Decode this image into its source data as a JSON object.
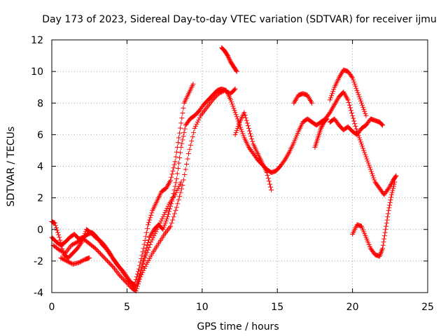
{
  "chart_data": {
    "type": "scatter",
    "title": "Day 173 of 2023, Sidereal Day-to-day VTEC variation (SDTVAR) for receiver ijmu",
    "xlabel": "GPS time / hours",
    "ylabel": "SDTVAR / TECUs",
    "xlim": [
      0,
      25
    ],
    "ylim": [
      -4,
      12
    ],
    "xticks": [
      "0",
      "5",
      "10",
      "15",
      "20",
      "25"
    ],
    "yticks": [
      "-4",
      "-2",
      "0",
      "2",
      "4",
      "6",
      "8",
      "10",
      "12"
    ],
    "grid": true,
    "marker": "+",
    "color": "#ff0000",
    "series": [
      {
        "x": [
          0.0,
          0.3,
          0.6,
          0.9,
          1.2,
          1.5,
          1.8,
          2.1,
          2.4,
          2.7,
          3.0,
          3.3,
          3.6,
          3.9,
          4.2,
          4.5,
          4.8,
          5.1,
          5.4,
          5.6,
          5.9,
          6.2,
          6.5,
          6.8,
          7.1,
          7.4,
          7.7,
          8.0,
          8.3,
          8.6,
          8.9,
          9.2,
          9.5,
          9.8,
          10.1,
          10.4,
          10.7,
          11.0,
          11.3,
          11.6,
          11.9,
          12.2,
          12.5,
          12.8,
          13.1,
          13.4,
          13.7,
          14.0,
          14.3,
          14.6,
          14.9,
          15.2,
          15.5,
          15.8,
          16.1,
          16.4,
          16.7,
          17.0,
          17.3,
          17.6,
          17.9,
          18.2,
          18.5,
          18.8,
          19.1,
          19.4,
          19.7,
          20.0,
          20.3,
          20.6,
          20.9,
          21.2,
          21.5,
          21.8,
          22.1,
          22.4,
          22.7,
          22.9
        ],
        "y": [
          -0.5,
          -0.8,
          -1.0,
          -0.8,
          -0.5,
          -0.3,
          -0.6,
          -0.5,
          -0.3,
          -0.2,
          -0.5,
          -0.9,
          -1.2,
          -1.6,
          -2.0,
          -2.4,
          -2.8,
          -3.2,
          -3.5,
          -3.6,
          -2.8,
          -1.5,
          -0.5,
          0.0,
          0.3,
          0.0,
          0.8,
          1.8,
          3.2,
          5.2,
          6.6,
          7.0,
          7.2,
          7.5,
          7.9,
          8.2,
          8.5,
          8.8,
          8.9,
          8.8,
          8.2,
          7.4,
          6.6,
          5.8,
          5.2,
          4.8,
          4.4,
          4.1,
          3.8,
          3.6,
          3.7,
          4.0,
          4.4,
          4.9,
          5.5,
          6.2,
          6.8,
          7.0,
          6.8,
          6.6,
          6.8,
          7.0,
          7.4,
          7.9,
          8.4,
          8.7,
          8.2,
          7.2,
          6.2,
          5.4,
          4.6,
          3.8,
          3.0,
          2.6,
          2.2,
          2.6,
          3.1,
          3.4
        ]
      },
      {
        "x": [
          0.1,
          0.5,
          0.9,
          1.3,
          1.7,
          2.1,
          2.5,
          2.9,
          3.3,
          3.7,
          4.1,
          4.5,
          4.9,
          5.3,
          5.6,
          5.9,
          6.3,
          6.7,
          7.1,
          7.5,
          7.9,
          8.3,
          8.7,
          9.1,
          9.5,
          9.9,
          10.3,
          10.7,
          11.1,
          11.5,
          11.9,
          12.2
        ],
        "y": [
          -1.0,
          -1.3,
          -1.5,
          -1.0,
          -0.8,
          -0.6,
          -0.9,
          -1.2,
          -1.6,
          -2.0,
          -2.4,
          -2.9,
          -3.3,
          -3.7,
          -3.9,
          -3.0,
          -2.2,
          -1.5,
          -0.9,
          -0.3,
          0.2,
          1.4,
          2.8,
          4.8,
          6.4,
          7.2,
          7.7,
          8.2,
          8.6,
          8.8,
          8.6,
          8.9
        ]
      },
      {
        "x": [
          0.0,
          0.2,
          0.5,
          0.8,
          1.1,
          1.4,
          1.7,
          2.0,
          2.3,
          2.6,
          2.9,
          3.2,
          3.5,
          3.8,
          4.1,
          4.4,
          4.7,
          5.0,
          5.3,
          5.5,
          5.8,
          6.1,
          6.4,
          6.7,
          7.0,
          7.3,
          7.6,
          7.9,
          8.2,
          8.5,
          8.8,
          9.1,
          9.4
        ],
        "y": [
          0.5,
          0.4,
          -0.5,
          -1.6,
          -1.8,
          -1.5,
          -1.2,
          -0.8,
          0.0,
          -0.2,
          -0.5,
          -0.7,
          -1.0,
          -1.4,
          -1.9,
          -2.3,
          -2.6,
          -3.0,
          -3.4,
          -3.5,
          -2.5,
          -1.2,
          0.3,
          1.2,
          1.8,
          2.4,
          2.6,
          3.1,
          4.3,
          6.1,
          8.0,
          8.6,
          9.2
        ]
      },
      {
        "x": [
          0.6,
          1.0,
          1.4,
          1.8,
          2.2,
          2.5
        ],
        "y": [
          -1.8,
          -2.0,
          -2.2,
          -2.1,
          -1.9,
          -1.8
        ]
      },
      {
        "x": [
          5.8,
          6.2,
          6.6,
          7.0,
          7.4,
          7.8,
          8.2,
          8.6
        ],
        "y": [
          -3.0,
          -1.8,
          -0.8,
          0.0,
          0.8,
          1.6,
          2.2,
          3.0
        ]
      },
      {
        "x": [
          11.3,
          11.5,
          11.7,
          11.9,
          12.1,
          12.3
        ],
        "y": [
          11.5,
          11.3,
          11.0,
          10.6,
          10.3,
          10.0
        ]
      },
      {
        "x": [
          12.2,
          12.5,
          12.8,
          13.1,
          13.4,
          13.7,
          14.0,
          14.3,
          14.6
        ],
        "y": [
          6.0,
          6.8,
          7.4,
          6.4,
          5.4,
          4.8,
          4.2,
          3.6,
          2.5
        ]
      },
      {
        "x": [
          16.1,
          16.4,
          16.7,
          17.0,
          17.3
        ],
        "y": [
          8.0,
          8.5,
          8.6,
          8.5,
          8.0
        ]
      },
      {
        "x": [
          18.5,
          18.8,
          19.1,
          19.4,
          19.7,
          20.0,
          20.3,
          20.6,
          20.9
        ],
        "y": [
          8.2,
          9.0,
          9.6,
          10.1,
          10.0,
          9.6,
          8.8,
          8.0,
          7.2
        ]
      },
      {
        "x": [
          18.5,
          18.8,
          19.1,
          19.4,
          19.7,
          20.0,
          20.3,
          20.6,
          20.9,
          21.2,
          21.5,
          21.8,
          22.0
        ],
        "y": [
          6.8,
          7.0,
          6.6,
          6.3,
          6.5,
          6.2,
          6.0,
          6.4,
          6.6,
          7.0,
          6.9,
          6.8,
          6.6
        ]
      },
      {
        "x": [
          20.0,
          20.3,
          20.6,
          20.9,
          21.2,
          21.5,
          21.8,
          22.0,
          22.2,
          22.4,
          22.6,
          22.8
        ],
        "y": [
          -0.3,
          0.3,
          0.2,
          -0.5,
          -1.2,
          -1.6,
          -1.7,
          -1.2,
          0.0,
          1.2,
          2.2,
          3.0
        ]
      },
      {
        "x": [
          17.5,
          17.7,
          17.9,
          18.1,
          18.3
        ],
        "y": [
          5.2,
          5.8,
          6.4,
          6.8,
          7.0
        ]
      }
    ]
  }
}
